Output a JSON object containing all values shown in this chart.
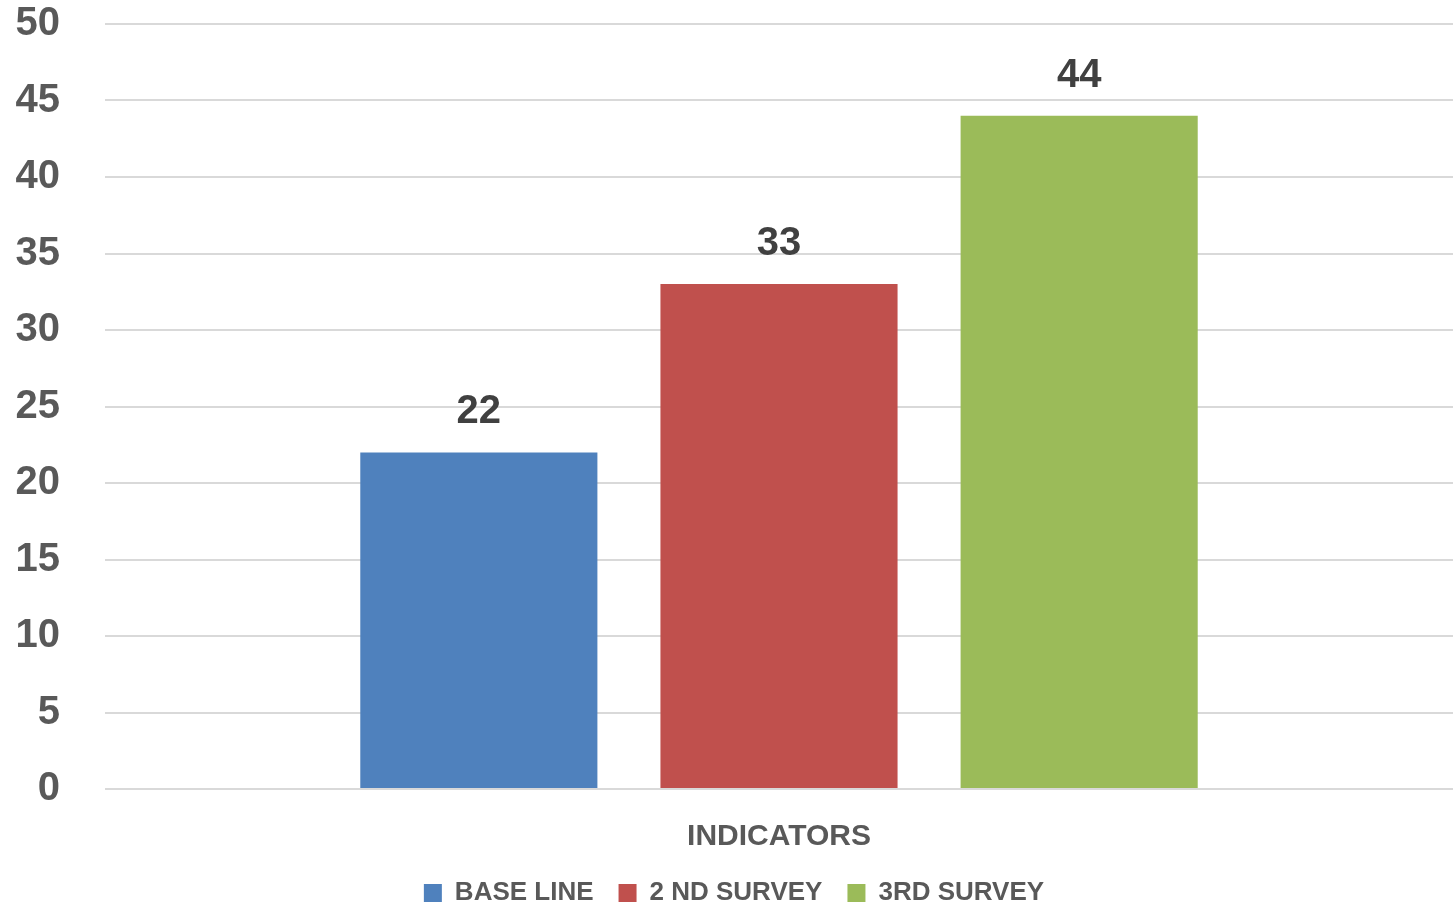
{
  "chart_data": {
    "type": "bar",
    "categories": [
      "INDICATORS"
    ],
    "series": [
      {
        "name": "BASE LINE",
        "color": "#4f81bd",
        "values": [
          22
        ]
      },
      {
        "name": "2 ND SURVEY",
        "color": "#c0504d",
        "values": [
          33
        ]
      },
      {
        "name": "3RD SURVEY",
        "color": "#9bbb59",
        "values": [
          44
        ]
      }
    ],
    "ylim": [
      0,
      50
    ],
    "yticks": [
      0,
      5,
      10,
      15,
      20,
      25,
      30,
      35,
      40,
      45,
      50
    ],
    "grid": "y",
    "legend": "bottom",
    "data_labels": true
  }
}
